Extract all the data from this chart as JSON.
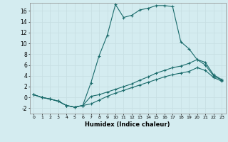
{
  "xlabel": "Humidex (Indice chaleur)",
  "bg_color": "#d4ecf0",
  "line_color": "#1a6b6b",
  "grid_color": "#c8dfe3",
  "xlim": [
    -0.5,
    23.5
  ],
  "ylim": [
    -3,
    17.5
  ],
  "xticks": [
    0,
    1,
    2,
    3,
    4,
    5,
    6,
    7,
    8,
    9,
    10,
    11,
    12,
    13,
    14,
    15,
    16,
    17,
    18,
    19,
    20,
    21,
    22,
    23
  ],
  "yticks": [
    -2,
    0,
    2,
    4,
    6,
    8,
    10,
    12,
    14,
    16
  ],
  "line1_x": [
    0,
    1,
    2,
    3,
    4,
    5,
    6,
    7,
    8,
    9,
    10,
    11,
    12,
    13,
    14,
    15,
    16,
    17,
    18,
    19,
    20,
    21,
    22,
    23
  ],
  "line1_y": [
    0.5,
    0.0,
    -0.3,
    -0.7,
    -1.5,
    -1.8,
    -1.5,
    2.7,
    7.7,
    11.5,
    17.2,
    14.8,
    15.2,
    16.2,
    16.5,
    17.0,
    17.0,
    16.8,
    10.3,
    9.0,
    7.0,
    6.0,
    4.0,
    3.2
  ],
  "line2_x": [
    0,
    1,
    2,
    3,
    4,
    5,
    6,
    7,
    8,
    9,
    10,
    11,
    12,
    13,
    14,
    15,
    16,
    17,
    18,
    19,
    20,
    21,
    22,
    23
  ],
  "line2_y": [
    0.5,
    0.0,
    -0.3,
    -0.7,
    -1.5,
    -1.8,
    -1.5,
    0.2,
    0.5,
    1.0,
    1.5,
    2.0,
    2.5,
    3.2,
    3.8,
    4.5,
    5.0,
    5.5,
    5.8,
    6.3,
    7.0,
    6.5,
    4.2,
    3.3
  ],
  "line3_x": [
    0,
    1,
    2,
    3,
    4,
    5,
    6,
    7,
    8,
    9,
    10,
    11,
    12,
    13,
    14,
    15,
    16,
    17,
    18,
    19,
    20,
    21,
    22,
    23
  ],
  "line3_y": [
    0.5,
    0.0,
    -0.3,
    -0.7,
    -1.5,
    -1.8,
    -1.5,
    -1.2,
    -0.5,
    0.2,
    0.8,
    1.3,
    1.8,
    2.3,
    2.8,
    3.3,
    3.8,
    4.2,
    4.5,
    4.8,
    5.5,
    5.0,
    3.7,
    3.0
  ]
}
